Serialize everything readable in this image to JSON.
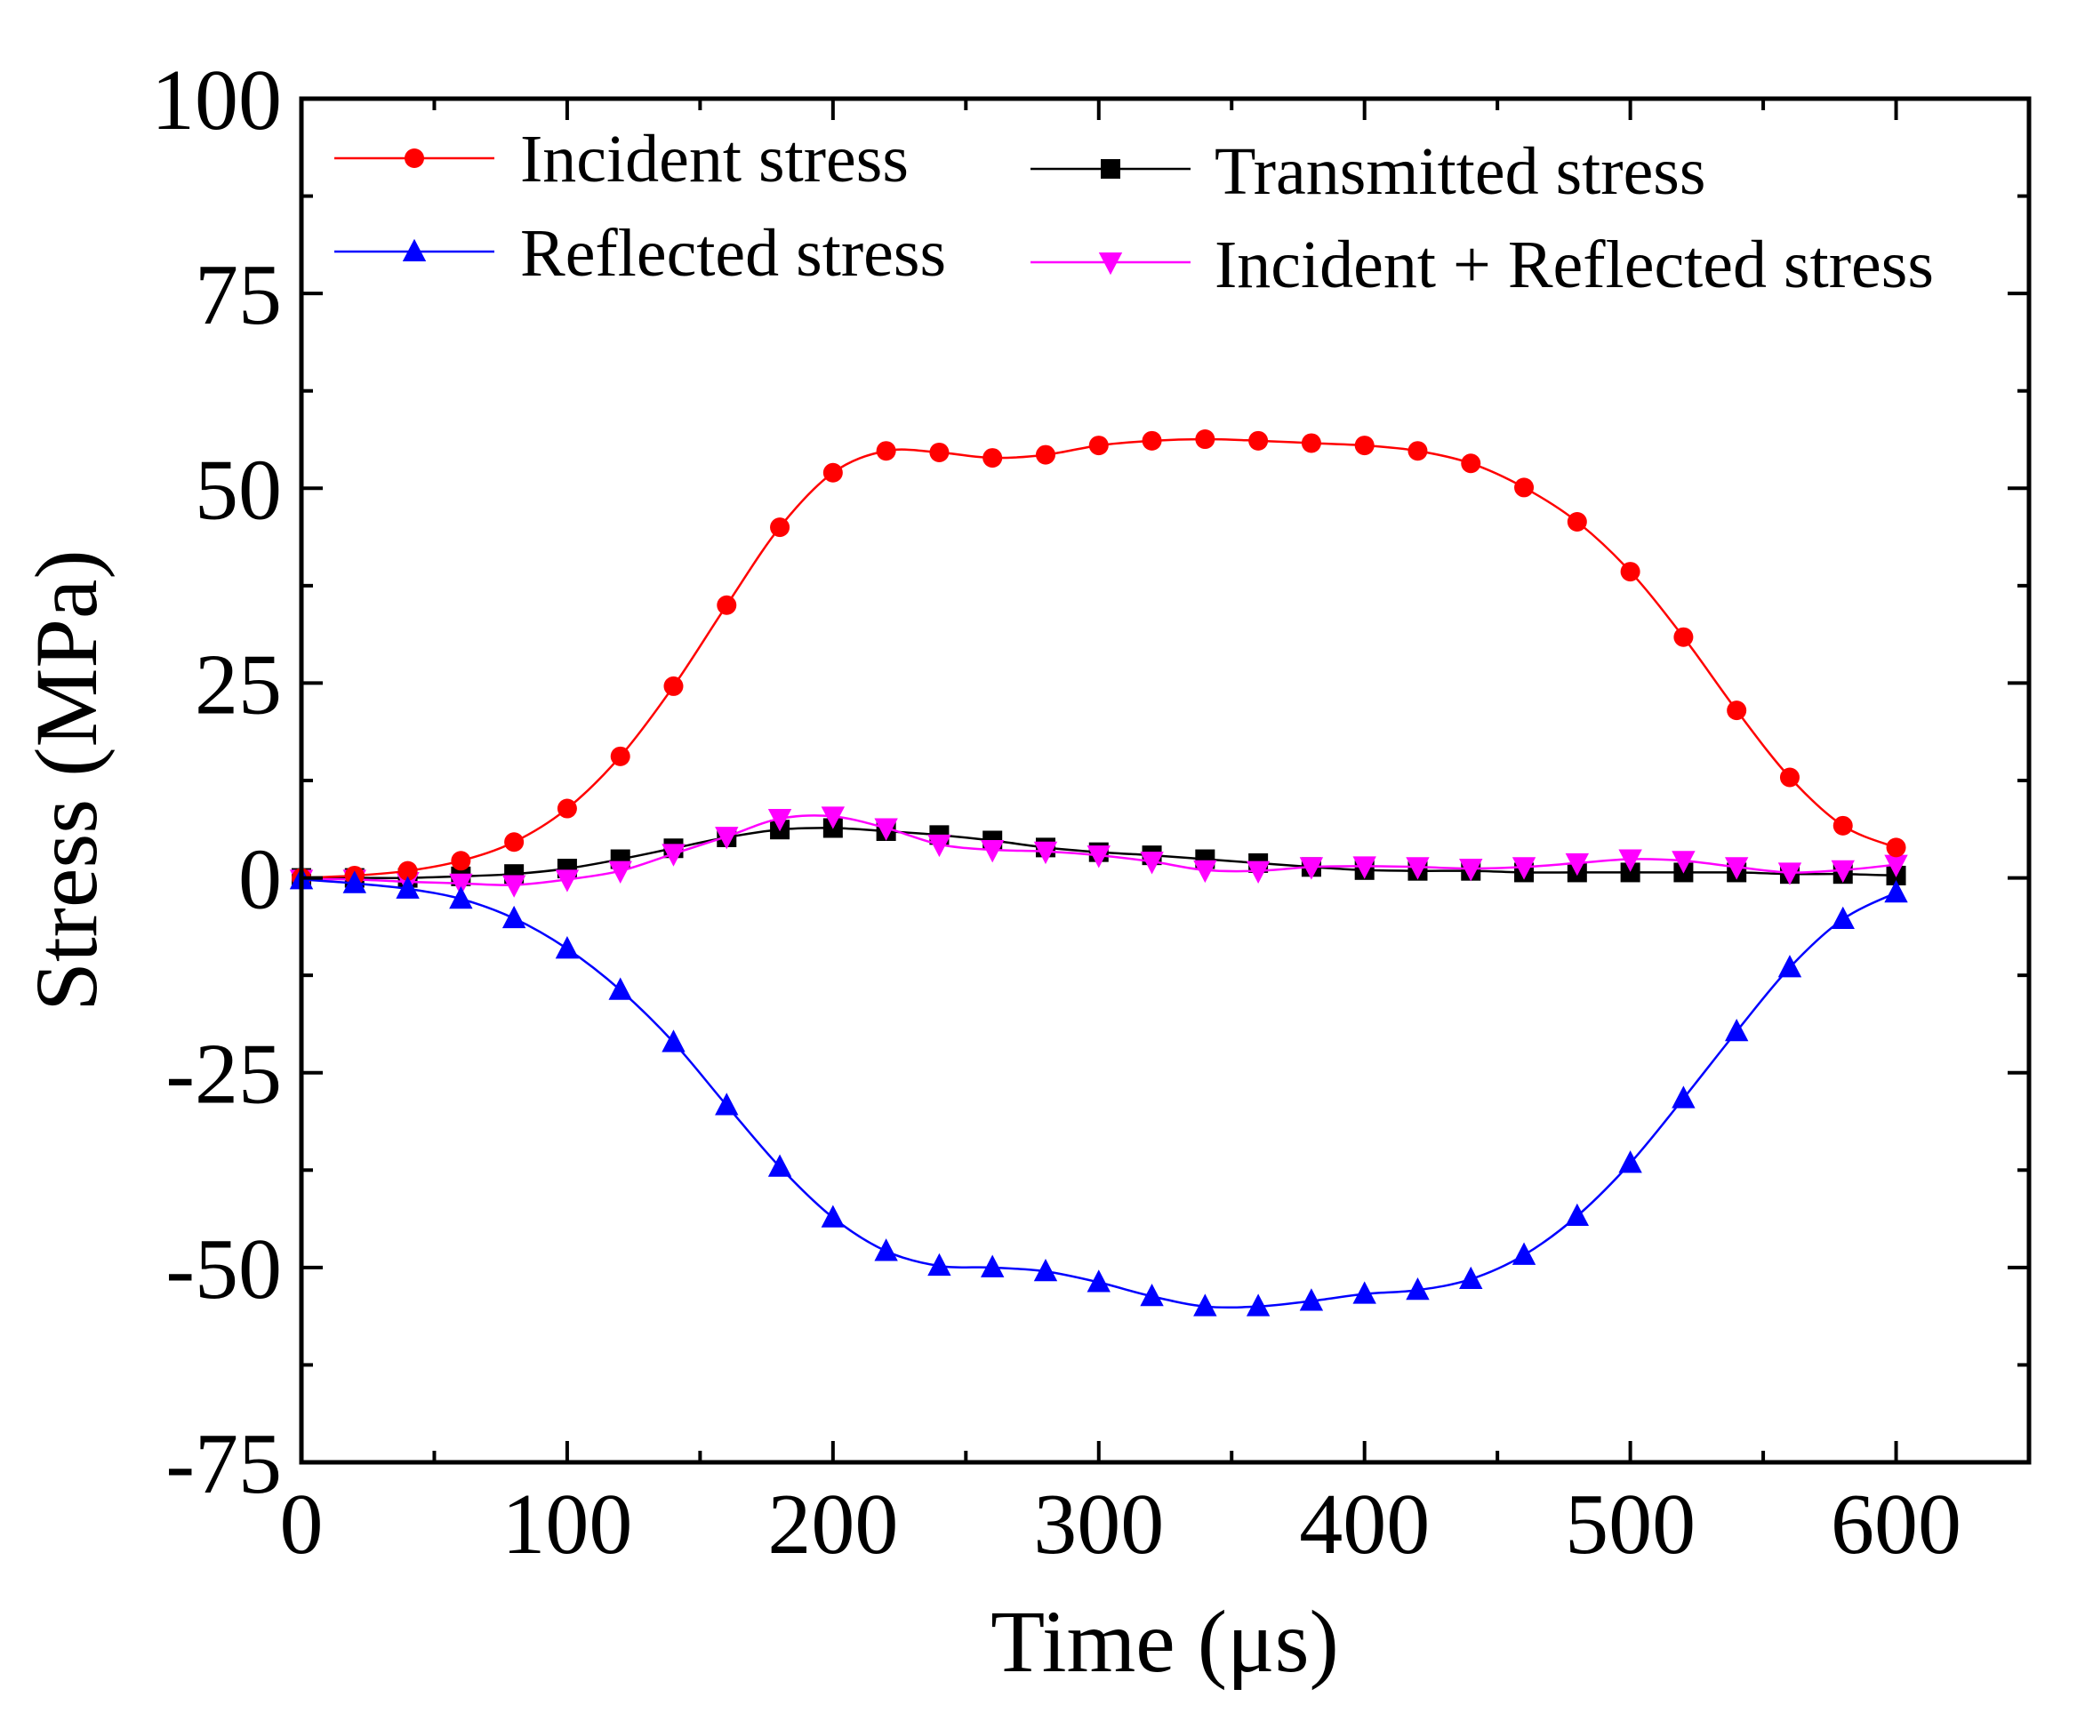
{
  "chart_data": {
    "type": "line",
    "title": "",
    "xlabel": "Time (μs)",
    "ylabel": "Stress (MPa)",
    "xlim": [
      0,
      650
    ],
    "ylim": [
      -75,
      100
    ],
    "xticks": [
      0,
      100,
      200,
      300,
      400,
      500,
      600
    ],
    "yticks": [
      100,
      75,
      50,
      25,
      0,
      -25,
      -50,
      -75
    ],
    "xtick_labels": [
      "0",
      "100",
      "200",
      "300",
      "400",
      "500",
      "600"
    ],
    "ytick_labels": [
      "100",
      "75",
      "50",
      "25",
      "0",
      "-25",
      "-50",
      "-75"
    ],
    "grid": false,
    "legend_placement": "top",
    "x": [
      0,
      20,
      40,
      60,
      80,
      100,
      120,
      140,
      160,
      180,
      200,
      220,
      240,
      260,
      280,
      300,
      320,
      340,
      360,
      380,
      400,
      420,
      440,
      460,
      480,
      500,
      520,
      540,
      560,
      580,
      600
    ],
    "series": [
      {
        "name": "Incident stress",
        "color": "#ff0000",
        "marker": "circle",
        "values": [
          0,
          0.3,
          0.9,
          2.2,
          4.6,
          8.9,
          15.6,
          24.6,
          35,
          45,
          52,
          54.8,
          54.6,
          53.9,
          54.3,
          55.5,
          56.1,
          56.3,
          56.1,
          55.8,
          55.5,
          54.8,
          53.2,
          50.1,
          45.7,
          39.3,
          30.9,
          21.5,
          12.9,
          6.7,
          3.9
        ]
      },
      {
        "name": "Reflected stress",
        "color": "#0000ff",
        "marker": "triangle-up",
        "values": [
          -0.2,
          -0.7,
          -1.4,
          -2.7,
          -5.2,
          -9.1,
          -14.4,
          -21.1,
          -29.2,
          -37.1,
          -43.6,
          -47.9,
          -49.8,
          -50,
          -50.5,
          -51.9,
          -53.7,
          -55,
          -55,
          -54.3,
          -53.4,
          -52.9,
          -51.5,
          -48.4,
          -43.4,
          -36.6,
          -28.3,
          -19.7,
          -11.5,
          -5.3,
          -1.9
        ]
      },
      {
        "name": "Transmitted stress",
        "color": "#000000",
        "marker": "square",
        "values": [
          0,
          0,
          0,
          0.2,
          0.5,
          1.2,
          2.4,
          3.8,
          5.2,
          6.2,
          6.4,
          6,
          5.5,
          4.8,
          3.9,
          3.3,
          2.9,
          2.4,
          1.9,
          1.4,
          1,
          0.9,
          0.9,
          0.7,
          0.7,
          0.7,
          0.7,
          0.7,
          0.5,
          0.5,
          0.3
        ]
      },
      {
        "name": "Incident + Reflected stress",
        "color": "#ff00ff",
        "marker": "triangle-down",
        "values": [
          -0.2,
          -0.2,
          -0.5,
          -0.7,
          -0.9,
          -0.2,
          0.9,
          3.1,
          5.3,
          7.6,
          7.9,
          6.4,
          4.3,
          3.6,
          3.4,
          2.9,
          2.1,
          1,
          0.9,
          1.4,
          1.5,
          1.4,
          1.2,
          1.4,
          1.9,
          2.4,
          2.2,
          1.4,
          0.7,
          1,
          1.7
        ]
      }
    ]
  }
}
